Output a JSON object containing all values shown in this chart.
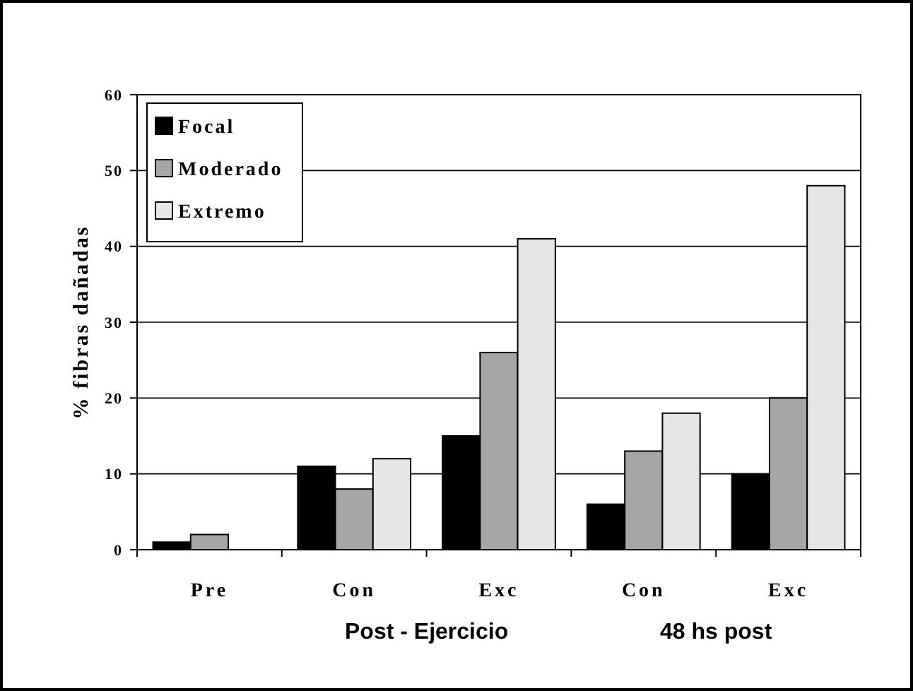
{
  "chart_data": {
    "type": "bar",
    "ylabel": "% fibras dañadas",
    "categories": [
      "Pre",
      "Con",
      "Exc",
      "Con",
      "Exc"
    ],
    "series": [
      {
        "name": "Focal",
        "color": "#000000",
        "values": [
          1,
          11,
          15,
          6,
          10
        ]
      },
      {
        "name": "Moderado",
        "color": "#a6a6a6",
        "values": [
          2,
          8,
          26,
          13,
          20
        ]
      },
      {
        "name": "Extremo",
        "color": "#e6e6e6",
        "values": [
          0,
          12,
          41,
          18,
          48
        ]
      }
    ],
    "ylim": [
      0,
      60
    ],
    "yticks": [
      0,
      10,
      20,
      30,
      40,
      50,
      60
    ],
    "grid": "y",
    "legend": "top left",
    "annotations": [
      "Post - Ejercicio",
      "48 hs post"
    ]
  }
}
